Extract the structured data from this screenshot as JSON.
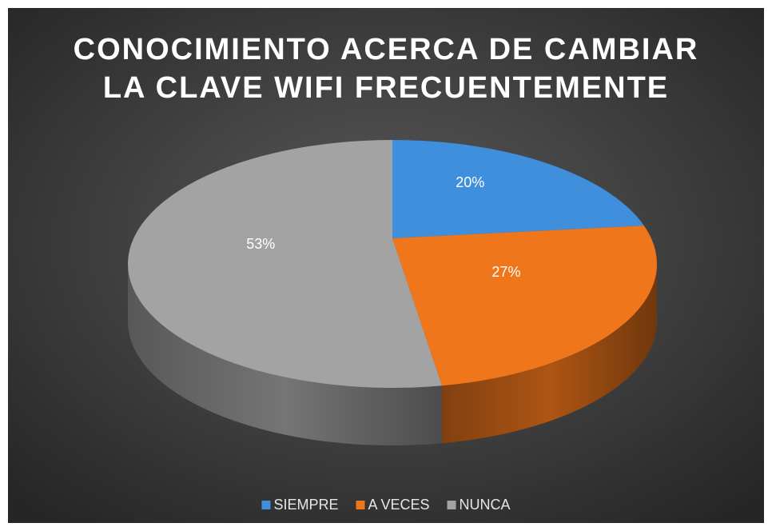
{
  "chart_data": {
    "type": "pie3d",
    "title": "CONOCIMIENTO ACERCA DE CAMBIAR\nLA CLAVE WIFI FRECUENTEMENTE",
    "categories": [
      "SIEMPRE",
      "A VECES",
      "NUNCA"
    ],
    "values": [
      20,
      27,
      53
    ],
    "value_labels": [
      "20%",
      "27%",
      "53%"
    ],
    "colors": [
      "#3f8fdc",
      "#f0761c",
      "#a3a3a3"
    ],
    "legend": "bottom"
  }
}
